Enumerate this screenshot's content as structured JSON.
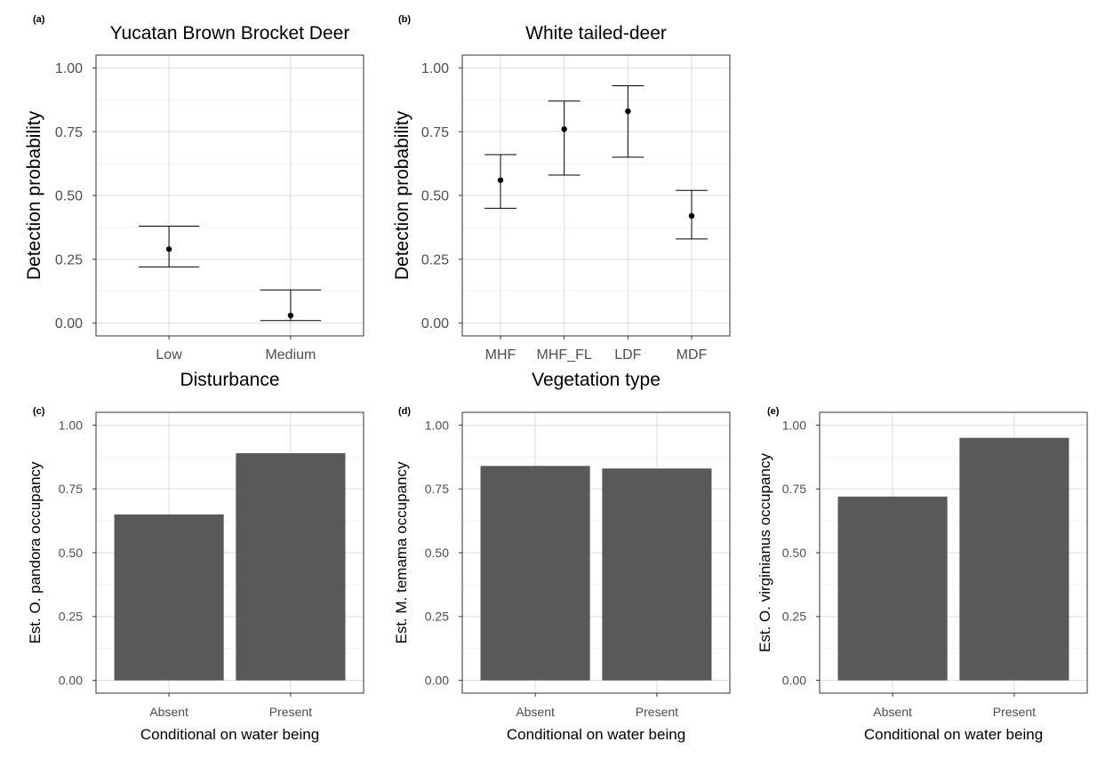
{
  "chart_data": [
    {
      "id": "a",
      "type": "errorbar",
      "panel_label": "(a)",
      "title": "Yucatan Brown Brocket Deer",
      "xlabel": "Disturbance",
      "ylabel": "Detection probability",
      "categories": [
        "Low",
        "Medium"
      ],
      "estimates": [
        0.29,
        0.03
      ],
      "lower": [
        0.22,
        0.01
      ],
      "upper": [
        0.38,
        0.13
      ],
      "ylim": [
        -0.05,
        1.05
      ],
      "yticks": [
        0.0,
        0.25,
        0.5,
        0.75,
        1.0
      ],
      "ytick_labels": [
        "0.00",
        "0.25",
        "0.50",
        "0.75",
        "1.00"
      ]
    },
    {
      "id": "b",
      "type": "errorbar",
      "panel_label": "(b)",
      "title": "White tailed-deer",
      "xlabel": "Vegetation type",
      "ylabel": "Detection probability",
      "categories": [
        "MHF",
        "MHF_FL",
        "LDF",
        "MDF"
      ],
      "estimates": [
        0.56,
        0.76,
        0.83,
        0.42
      ],
      "lower": [
        0.45,
        0.58,
        0.65,
        0.33
      ],
      "upper": [
        0.66,
        0.87,
        0.93,
        0.52
      ],
      "ylim": [
        -0.05,
        1.05
      ],
      "yticks": [
        0.0,
        0.25,
        0.5,
        0.75,
        1.0
      ],
      "ytick_labels": [
        "0.00",
        "0.25",
        "0.50",
        "0.75",
        "1.00"
      ]
    },
    {
      "id": "c",
      "type": "bar",
      "panel_label": "(c)",
      "title": "",
      "xlabel": "Conditional on water being",
      "ylabel": "Est. O. pandora occupancy",
      "categories": [
        "Absent",
        "Present"
      ],
      "values": [
        0.65,
        0.89
      ],
      "ylim": [
        -0.05,
        1.05
      ],
      "yticks": [
        0.0,
        0.25,
        0.5,
        0.75,
        1.0
      ],
      "ytick_labels": [
        "0.00",
        "0.25",
        "0.50",
        "0.75",
        "1.00"
      ],
      "bar_color": "#595959"
    },
    {
      "id": "d",
      "type": "bar",
      "panel_label": "(d)",
      "title": "",
      "xlabel": "Conditional on water being",
      "ylabel": "Est. M. temama occupancy",
      "categories": [
        "Absent",
        "Present"
      ],
      "values": [
        0.84,
        0.83
      ],
      "ylim": [
        -0.05,
        1.05
      ],
      "yticks": [
        0.0,
        0.25,
        0.5,
        0.75,
        1.0
      ],
      "ytick_labels": [
        "0.00",
        "0.25",
        "0.50",
        "0.75",
        "1.00"
      ],
      "bar_color": "#595959"
    },
    {
      "id": "e",
      "type": "bar",
      "panel_label": "(e)",
      "title": "",
      "xlabel": "Conditional on water being",
      "ylabel": "Est. O. virginianus occupancy",
      "categories": [
        "Absent",
        "Present"
      ],
      "values": [
        0.72,
        0.95
      ],
      "ylim": [
        -0.05,
        1.05
      ],
      "yticks": [
        0.0,
        0.25,
        0.5,
        0.75,
        1.0
      ],
      "ytick_labels": [
        "0.00",
        "0.25",
        "0.50",
        "0.75",
        "1.00"
      ],
      "bar_color": "#595959"
    }
  ]
}
